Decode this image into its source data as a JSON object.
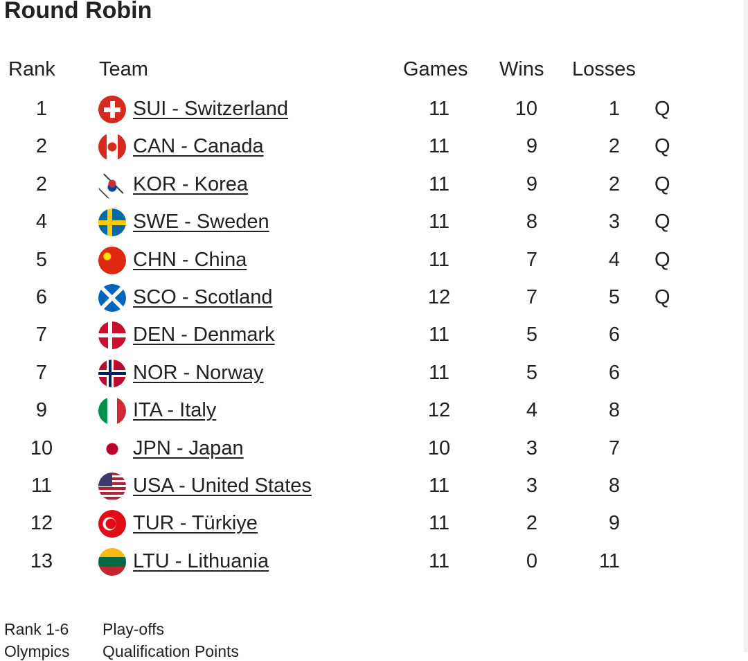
{
  "header": {
    "title": "Round Robin"
  },
  "table": {
    "columns": [
      "Rank",
      "Team",
      "Games",
      "Wins",
      "Losses"
    ],
    "rows": [
      {
        "rank": 1,
        "team": "SUI - Switzerland",
        "games": 11,
        "wins": 10,
        "losses": 1,
        "status": "Q"
      },
      {
        "rank": 2,
        "team": "CAN - Canada",
        "games": 11,
        "wins": 9,
        "losses": 2,
        "status": "Q"
      },
      {
        "rank": 2,
        "team": "KOR - Korea",
        "games": 11,
        "wins": 9,
        "losses": 2,
        "status": "Q"
      },
      {
        "rank": 4,
        "team": "SWE - Sweden",
        "games": 11,
        "wins": 8,
        "losses": 3,
        "status": "Q"
      },
      {
        "rank": 5,
        "team": "CHN - China",
        "games": 11,
        "wins": 7,
        "losses": 4,
        "status": "Q"
      },
      {
        "rank": 6,
        "team": "SCO - Scotland",
        "games": 12,
        "wins": 7,
        "losses": 5,
        "status": "Q"
      },
      {
        "rank": 7,
        "team": "DEN - Denmark",
        "games": 11,
        "wins": 5,
        "losses": 6
      },
      {
        "rank": 7,
        "team": "NOR - Norway",
        "games": 11,
        "wins": 5,
        "losses": 6
      },
      {
        "rank": 9,
        "team": "ITA - Italy",
        "games": 12,
        "wins": 4,
        "losses": 8
      },
      {
        "rank": 10,
        "team": "JPN - Japan",
        "games": 10,
        "wins": 3,
        "losses": 7
      },
      {
        "rank": 11,
        "team": "USA - United States",
        "games": 11,
        "wins": 3,
        "losses": 8
      },
      {
        "rank": 12,
        "team": "TUR - Türkiye",
        "games": 11,
        "wins": 2,
        "losses": 9
      },
      {
        "rank": 13,
        "team": "LTU - Lithuania",
        "games": 11,
        "wins": 0,
        "losses": 11
      }
    ]
  },
  "legend": [
    {
      "key": "Rank 1-6",
      "label": "Play-offs"
    },
    {
      "key": "Olympics",
      "label": "Qualification Points"
    }
  ]
}
